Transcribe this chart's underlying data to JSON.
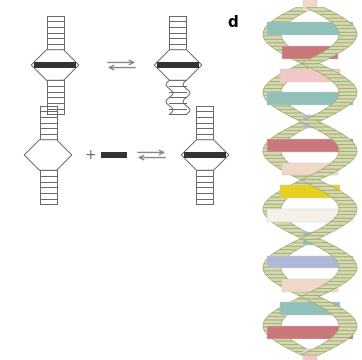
{
  "bg_color": "#ffffff",
  "label_d": "d",
  "dna_colors": {
    "backbone_fill": "#d4d9b0",
    "backbone_edge": "#a0a870",
    "pink": "#c87878",
    "teal": "#90c0b8",
    "peach": "#f0d8c8",
    "blue": "#b0b8d8",
    "yellow": "#e8d020",
    "white_cream": "#f5f0e8",
    "pink_light": "#f0c8c8"
  },
  "ladder_dark": "#666666",
  "ladder_gray": "#999999",
  "intercalator_color": "#333333",
  "arrow_color": "#888888"
}
